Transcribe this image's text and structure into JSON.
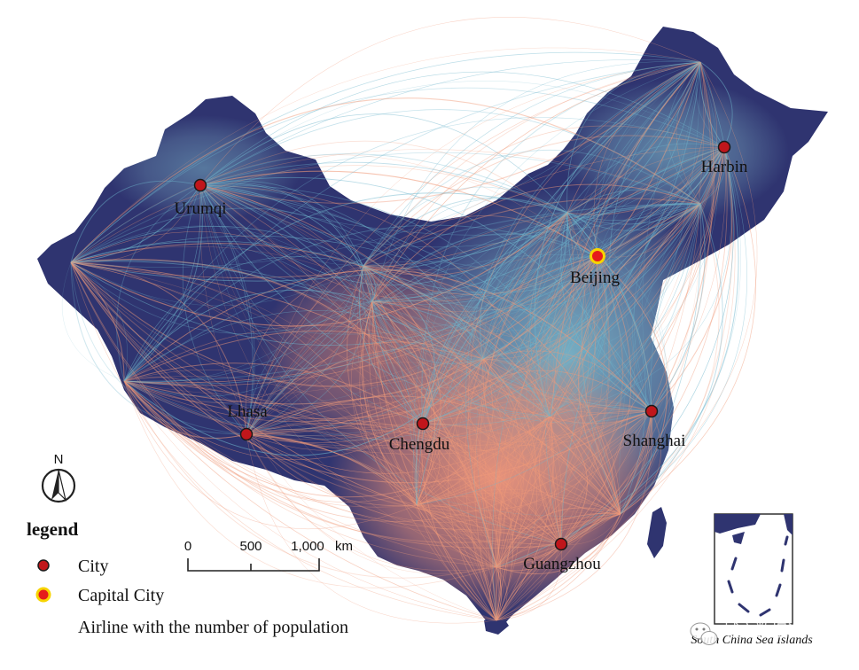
{
  "colors": {
    "land": "#2f3470",
    "airline_cool": "#6fb6cc",
    "airline_warm": "#f09a7a",
    "city_fill": "#c0161b",
    "capital_fill": "#e61b1b",
    "capital_ring": "#f7d400"
  },
  "cities": [
    {
      "id": "urumqi",
      "name": "Urumqi",
      "capital": false
    },
    {
      "id": "harbin",
      "name": "Harbin",
      "capital": false
    },
    {
      "id": "beijing",
      "name": "Beijing",
      "capital": true
    },
    {
      "id": "lhasa",
      "name": "Lhasa",
      "capital": false
    },
    {
      "id": "chengdu",
      "name": "Chengdu",
      "capital": false
    },
    {
      "id": "shanghai",
      "name": "Shanghai",
      "capital": false
    },
    {
      "id": "guangzhou",
      "name": "Guangzhou",
      "capital": false
    }
  ],
  "north_arrow": {
    "label": "N",
    "icon": "north-arrow-icon"
  },
  "legend": {
    "title": "legend",
    "items": [
      {
        "label": "City",
        "symbol": "red-dot-icon"
      },
      {
        "label": "Capital City",
        "symbol": "capital-dot-icon"
      },
      {
        "label": "Airline with the number of population",
        "symbol": "airline-line-icon"
      }
    ]
  },
  "scale_bar": {
    "ticks": [
      "0",
      "500",
      "1,000"
    ],
    "unit": "km"
  },
  "inset": {
    "caption": "South China Sea Islands"
  },
  "watermark": {
    "text": "城市数据派",
    "icon": "wechat-icon"
  }
}
